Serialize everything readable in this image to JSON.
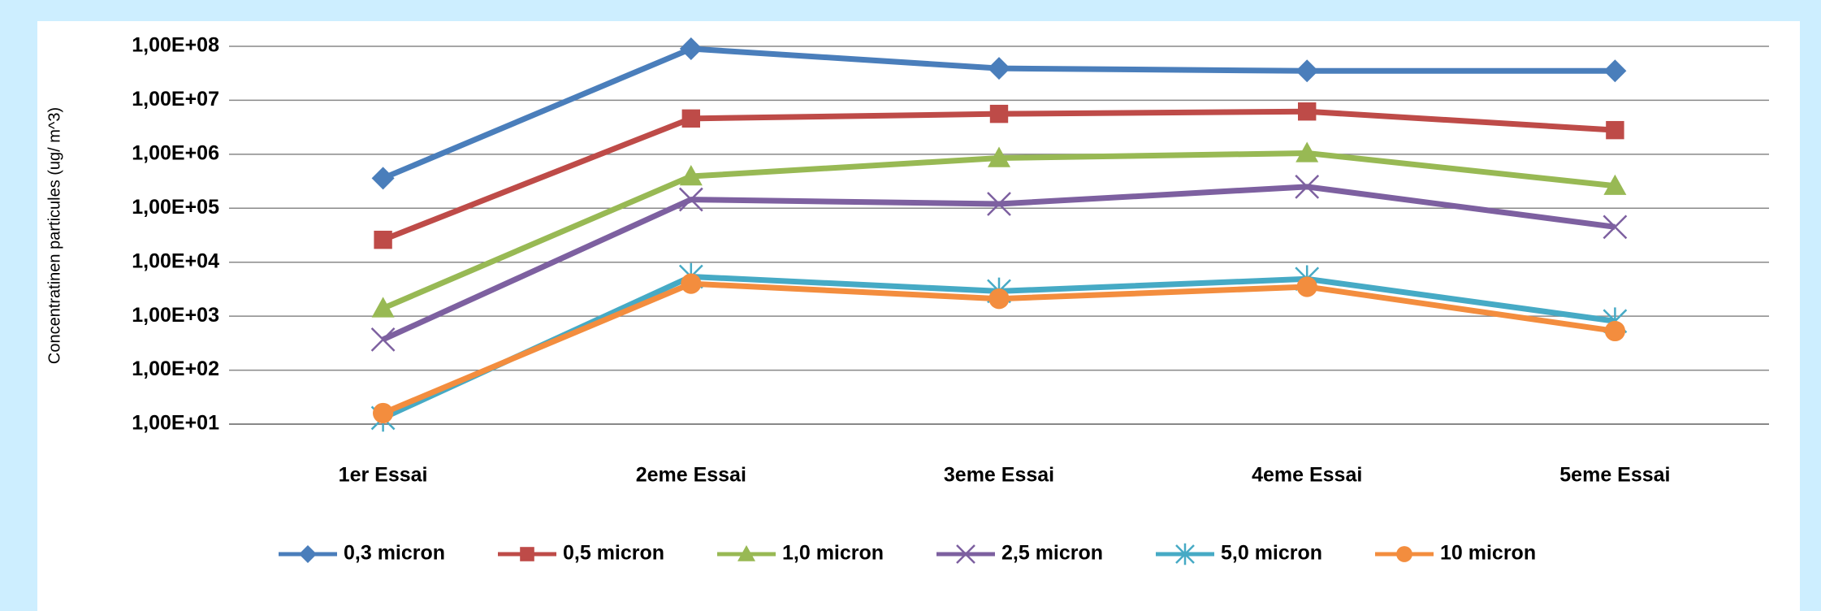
{
  "chart_data": {
    "type": "line",
    "y_label": "Concentratinen particules (ug/ m^3)",
    "categories": [
      "1er Essai",
      "2eme Essai",
      "3eme Essai",
      "4eme Essai",
      "5eme Essai"
    ],
    "log_scale": true,
    "grid": true,
    "legend": "bottom",
    "ylim": [
      10,
      100000000
    ],
    "yticks": [
      {
        "value": 10,
        "label": "1,00E+01"
      },
      {
        "value": 100,
        "label": "1,00E+02"
      },
      {
        "value": 1000,
        "label": "1,00E+03"
      },
      {
        "value": 10000,
        "label": "1,00E+04"
      },
      {
        "value": 100000,
        "label": "1,00E+05"
      },
      {
        "value": 1000000,
        "label": "1,00E+06"
      },
      {
        "value": 10000000,
        "label": "1,00E+07"
      },
      {
        "value": 100000000,
        "label": "1,00E+08"
      }
    ],
    "series": [
      {
        "name": "0,3 micron",
        "color": "#4a7ebb",
        "marker": "diamond",
        "values": [
          360000,
          90000000,
          39000000,
          35000000,
          35000000
        ]
      },
      {
        "name": "0,5 micron",
        "color": "#be4b48",
        "marker": "square",
        "values": [
          26000,
          4600000,
          5600000,
          6200000,
          2800000
        ]
      },
      {
        "name": "1,0 micron",
        "color": "#98b954",
        "marker": "triangle",
        "values": [
          1400,
          390000,
          850000,
          1050000,
          260000
        ]
      },
      {
        "name": "2,5 micron",
        "color": "#7d60a0",
        "marker": "x",
        "values": [
          370,
          145000,
          120000,
          250000,
          45000
        ]
      },
      {
        "name": "5,0 micron",
        "color": "#46aac5",
        "marker": "star",
        "values": [
          13,
          5400,
          2900,
          4900,
          810
        ]
      },
      {
        "name": "10 micron",
        "color": "#f38d3e",
        "marker": "circle",
        "values": [
          16,
          4000,
          2100,
          3500,
          530
        ]
      }
    ]
  }
}
